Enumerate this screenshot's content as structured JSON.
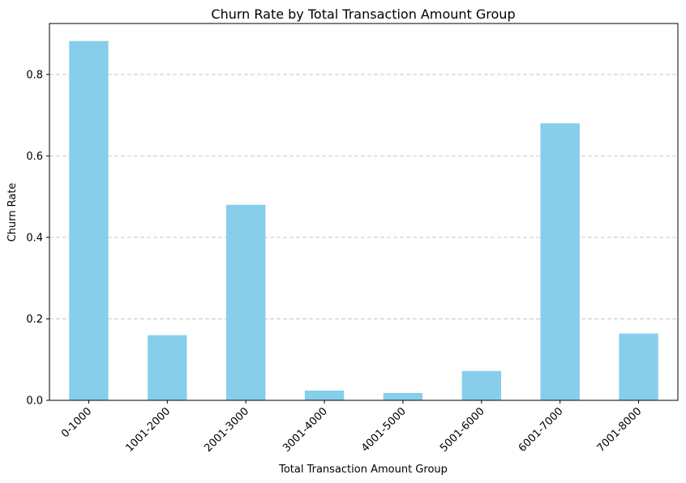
{
  "chart_data": {
    "type": "bar",
    "title": "Churn Rate by Total Transaction Amount Group",
    "xlabel": "Total Transaction Amount Group",
    "ylabel": "Churn Rate",
    "categories": [
      "0-1000",
      "1001-2000",
      "2001-3000",
      "3001-4000",
      "4001-5000",
      "5001-6000",
      "6001-7000",
      "7001-8000"
    ],
    "values": [
      0.882,
      0.16,
      0.48,
      0.024,
      0.018,
      0.072,
      0.68,
      0.164
    ],
    "ylim": [
      0,
      0.925
    ],
    "yticks": [
      0.0,
      0.2,
      0.4,
      0.6,
      0.8
    ],
    "ytick_labels": [
      "0.0",
      "0.2",
      "0.4",
      "0.6",
      "0.8"
    ],
    "grid": "y-dashed",
    "bar_color": "#87CEEB"
  }
}
